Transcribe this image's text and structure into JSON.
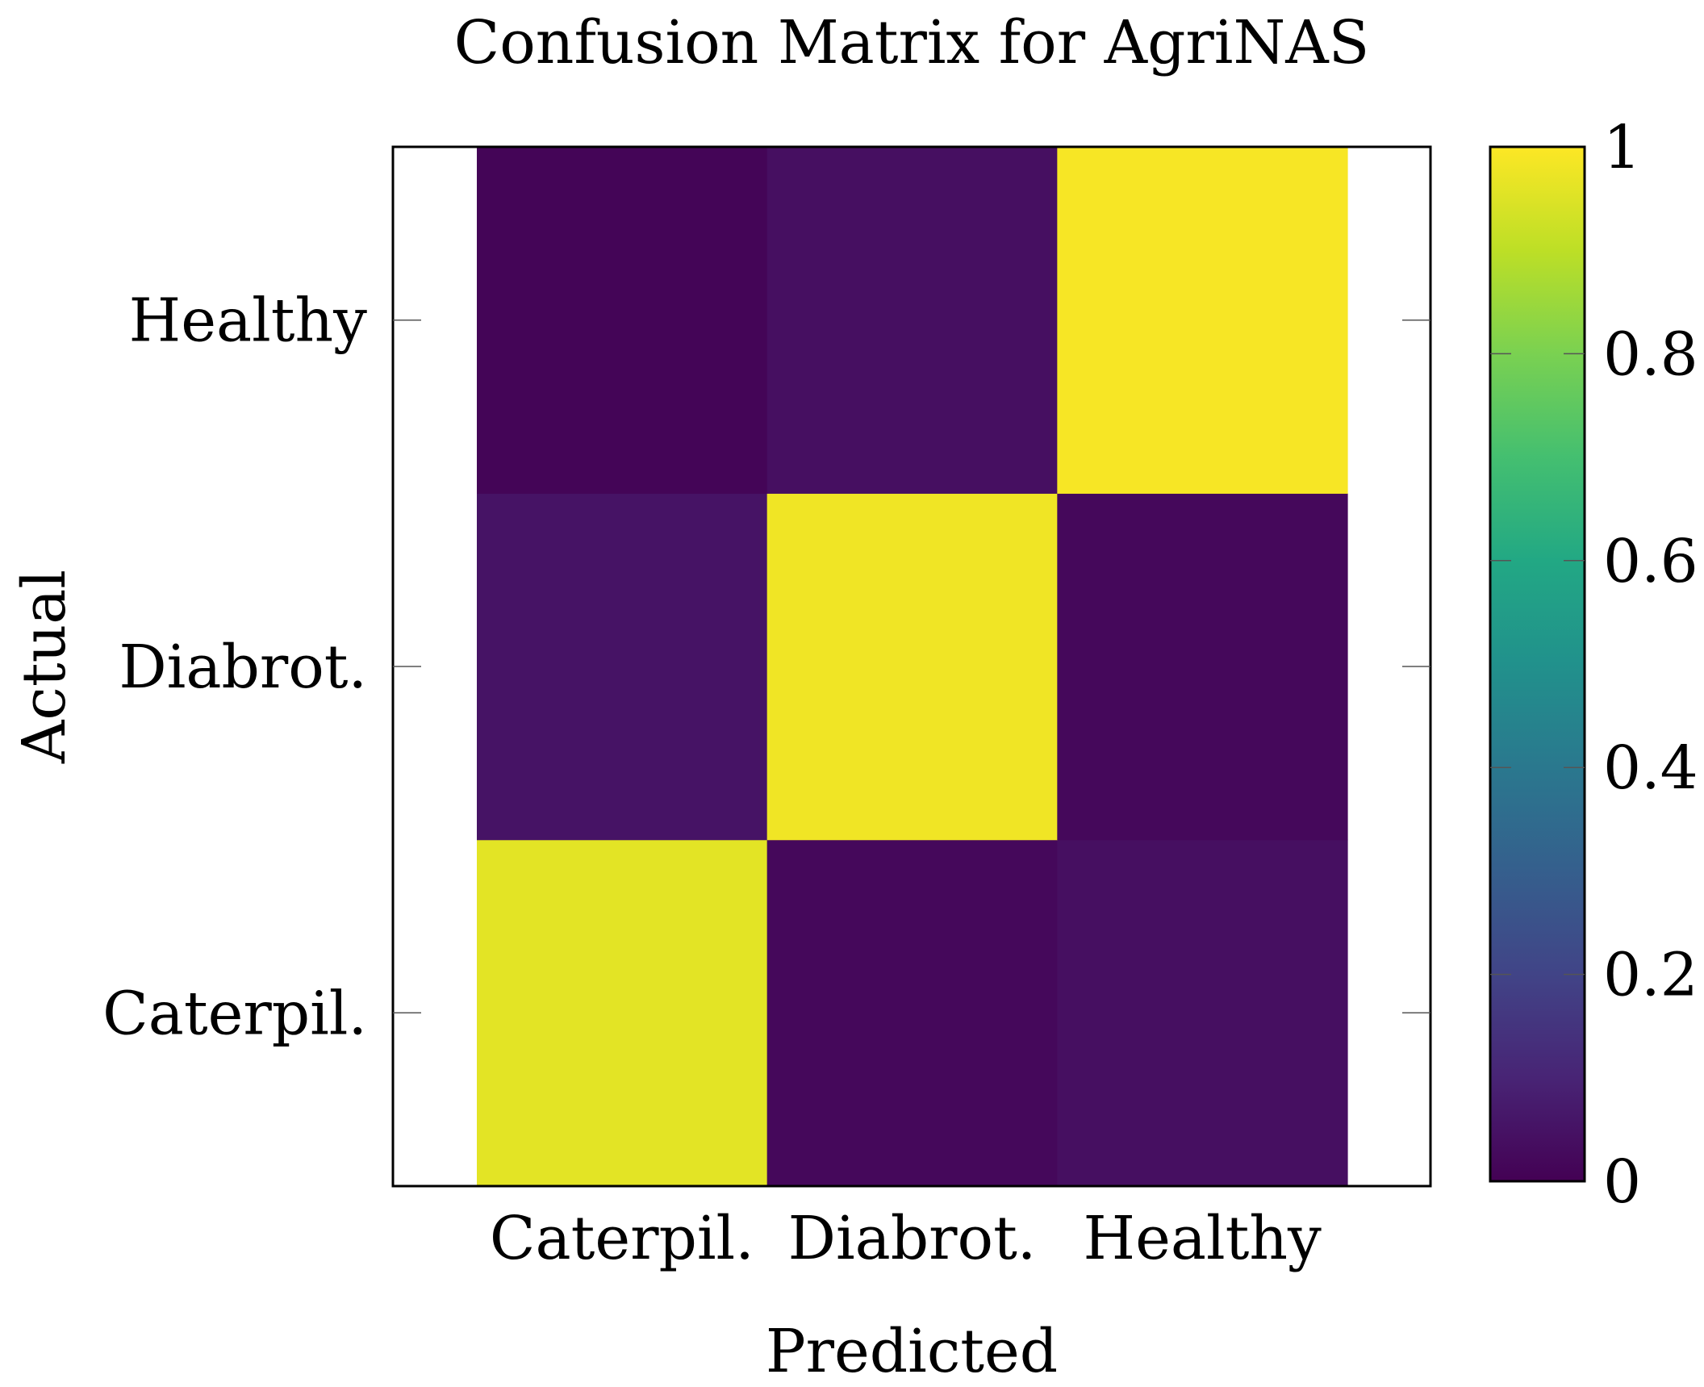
{
  "chart_data": {
    "type": "heatmap",
    "title": "Confusion Matrix for AgriNAS",
    "xlabel": "Predicted",
    "ylabel": "Actual",
    "x_categories": [
      "Caterpil.",
      "Diabrot.",
      "Healthy"
    ],
    "y_categories": [
      "Caterpil.",
      "Diabrot.",
      "Healthy"
    ],
    "matrix": [
      [
        0.96,
        0.02,
        0.04
      ],
      [
        0.05,
        0.98,
        0.02
      ],
      [
        0.01,
        0.04,
        0.99
      ]
    ],
    "colorbar": {
      "min": 0,
      "max": 1,
      "ticks": [
        "0",
        "0.2",
        "0.4",
        "0.6",
        "0.8",
        "1"
      ],
      "tick_values": [
        0,
        0.2,
        0.4,
        0.6,
        0.8,
        1
      ],
      "colormap": "viridis"
    }
  }
}
